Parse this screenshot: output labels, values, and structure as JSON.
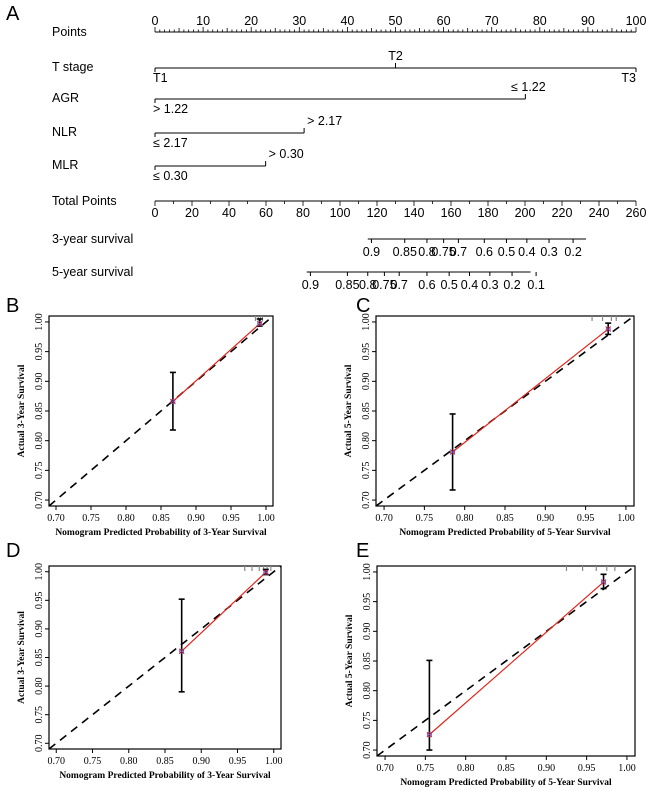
{
  "chart_data": [
    {
      "type": "nomogram",
      "panel": "A",
      "rows": [
        {
          "label": "Points",
          "kind": "scale",
          "min": 0,
          "max": 100,
          "labels": [
            0,
            10,
            20,
            30,
            40,
            50,
            60,
            70,
            80,
            90,
            100
          ]
        },
        {
          "label": "T stage",
          "kind": "factor",
          "levels": [
            {
              "text": "T1",
              "points": 0,
              "pos": "below"
            },
            {
              "text": "T2",
              "points": 50,
              "pos": "above"
            },
            {
              "text": "T3",
              "points": 100,
              "pos": "below"
            }
          ]
        },
        {
          "label": "AGR",
          "kind": "factor",
          "levels": [
            {
              "text": "> 1.22",
              "points": 0,
              "pos": "below"
            },
            {
              "text": "≤ 1.22",
              "points": 77,
              "pos": "above"
            }
          ]
        },
        {
          "label": "NLR",
          "kind": "factor",
          "levels": [
            {
              "text": "≤ 2.17",
              "points": 0,
              "pos": "below"
            },
            {
              "text": "> 2.17",
              "points": 31,
              "pos": "above"
            }
          ]
        },
        {
          "label": "MLR",
          "kind": "factor",
          "levels": [
            {
              "text": "≤ 0.30",
              "points": 0,
              "pos": "below"
            },
            {
              "text": "> 0.30",
              "points": 23,
              "pos": "above"
            }
          ]
        },
        {
          "label": "Total Points",
          "kind": "total",
          "min": 0,
          "max": 260,
          "labels": [
            0,
            20,
            40,
            60,
            80,
            100,
            120,
            140,
            160,
            180,
            200,
            220,
            240,
            260
          ]
        },
        {
          "label": "3-year survival",
          "kind": "survival",
          "line_from": 115,
          "line_to": 233,
          "ticks": [
            {
              "text": "0.9",
              "points": 117
            },
            {
              "text": "0.85",
              "points": 135
            },
            {
              "text": "0.8",
              "points": 147
            },
            {
              "text": "0.75",
              "points": 156
            },
            {
              "text": "0.7",
              "points": 164
            },
            {
              "text": "0.6",
              "points": 178
            },
            {
              "text": "0.5",
              "points": 190
            },
            {
              "text": "0.4",
              "points": 201
            },
            {
              "text": "0.3",
              "points": 213
            },
            {
              "text": "0.2",
              "points": 226
            }
          ]
        },
        {
          "label": "5-year survival",
          "kind": "survival",
          "line_from": 82,
          "line_to": 203,
          "ticks": [
            {
              "text": "0.9",
              "points": 84
            },
            {
              "text": "0.85",
              "points": 104
            },
            {
              "text": "0.8",
              "points": 115
            },
            {
              "text": "0.75",
              "points": 124
            },
            {
              "text": "0.7",
              "points": 132
            },
            {
              "text": "0.6",
              "points": 147
            },
            {
              "text": "0.5",
              "points": 159
            },
            {
              "text": "0.4",
              "points": 170
            },
            {
              "text": "0.3",
              "points": 181
            },
            {
              "text": "0.2",
              "points": 193
            },
            {
              "text": "0.1",
              "points": 206
            }
          ]
        }
      ]
    },
    {
      "type": "calibration",
      "panel": "B",
      "xlabel": "Nomogram Predicted Probability of 3-Year Survival",
      "ylabel": "Actual 3-Year Survival",
      "xlim": [
        0.69,
        1.01
      ],
      "ylim": [
        0.69,
        1.01
      ],
      "xticks": [
        0.7,
        0.75,
        0.8,
        0.85,
        0.9,
        0.95,
        1.0
      ],
      "yticks": [
        0.7,
        0.75,
        0.8,
        0.85,
        0.9,
        0.95,
        1.0
      ],
      "points": [
        {
          "x": 0.867,
          "y": 0.866,
          "lo": 0.818,
          "hi": 0.915
        },
        {
          "x": 0.991,
          "y": 0.997,
          "lo": 0.993,
          "hi": 1.005
        }
      ],
      "fit": [
        [
          0.867,
          0.866
        ],
        [
          0.991,
          0.997
        ]
      ],
      "rug": [
        0.985,
        0.989,
        0.992,
        0.995
      ]
    },
    {
      "type": "calibration",
      "panel": "C",
      "xlabel": "Nomogram Predicted Probability of 5-Year Survival",
      "ylabel": "Actual 5-Year Survival",
      "xlim": [
        0.69,
        1.01
      ],
      "ylim": [
        0.69,
        1.01
      ],
      "xticks": [
        0.7,
        0.75,
        0.8,
        0.85,
        0.9,
        0.95,
        1.0
      ],
      "yticks": [
        0.7,
        0.75,
        0.8,
        0.85,
        0.9,
        0.95,
        1.0
      ],
      "points": [
        {
          "x": 0.785,
          "y": 0.781,
          "lo": 0.717,
          "hi": 0.845
        },
        {
          "x": 0.978,
          "y": 0.988,
          "lo": 0.979,
          "hi": 0.998
        }
      ],
      "fit": [
        [
          0.785,
          0.781
        ],
        [
          0.978,
          0.988
        ]
      ],
      "rug": [
        0.958,
        0.971,
        0.982,
        0.988
      ]
    },
    {
      "type": "calibration",
      "panel": "D",
      "xlabel": "Nomogram Predicted Probability of 3-Year Survival",
      "ylabel": "Actual 3-Year Survival",
      "xlim": [
        0.69,
        1.01
      ],
      "ylim": [
        0.69,
        1.01
      ],
      "xticks": [
        0.7,
        0.75,
        0.8,
        0.85,
        0.9,
        0.95,
        1.0
      ],
      "yticks": [
        0.7,
        0.75,
        0.8,
        0.85,
        0.9,
        0.95,
        1.0
      ],
      "points": [
        {
          "x": 0.873,
          "y": 0.861,
          "lo": 0.79,
          "hi": 0.952
        },
        {
          "x": 0.989,
          "y": 0.999,
          "lo": 0.995,
          "hi": 1.004
        }
      ],
      "fit": [
        [
          0.873,
          0.861
        ],
        [
          0.989,
          0.999
        ]
      ],
      "rug": [
        0.96,
        0.97,
        0.98,
        0.986,
        0.991,
        0.996
      ]
    },
    {
      "type": "calibration",
      "panel": "E",
      "xlabel": "Nomogram Predicted Probability of 5-Year Survival",
      "ylabel": "Actual 5-Year Survival",
      "xlim": [
        0.69,
        1.01
      ],
      "ylim": [
        0.69,
        1.01
      ],
      "xticks": [
        0.7,
        0.75,
        0.8,
        0.85,
        0.9,
        0.95,
        1.0
      ],
      "yticks": [
        0.7,
        0.75,
        0.8,
        0.85,
        0.9,
        0.95,
        1.0
      ],
      "points": [
        {
          "x": 0.755,
          "y": 0.726,
          "lo": 0.7,
          "hi": 0.851
        },
        {
          "x": 0.971,
          "y": 0.983,
          "lo": 0.972,
          "hi": 0.996
        }
      ],
      "fit": [
        [
          0.755,
          0.726
        ],
        [
          0.971,
          0.983
        ]
      ],
      "rug": [
        0.925,
        0.945,
        0.962,
        0.975,
        0.985
      ]
    }
  ]
}
